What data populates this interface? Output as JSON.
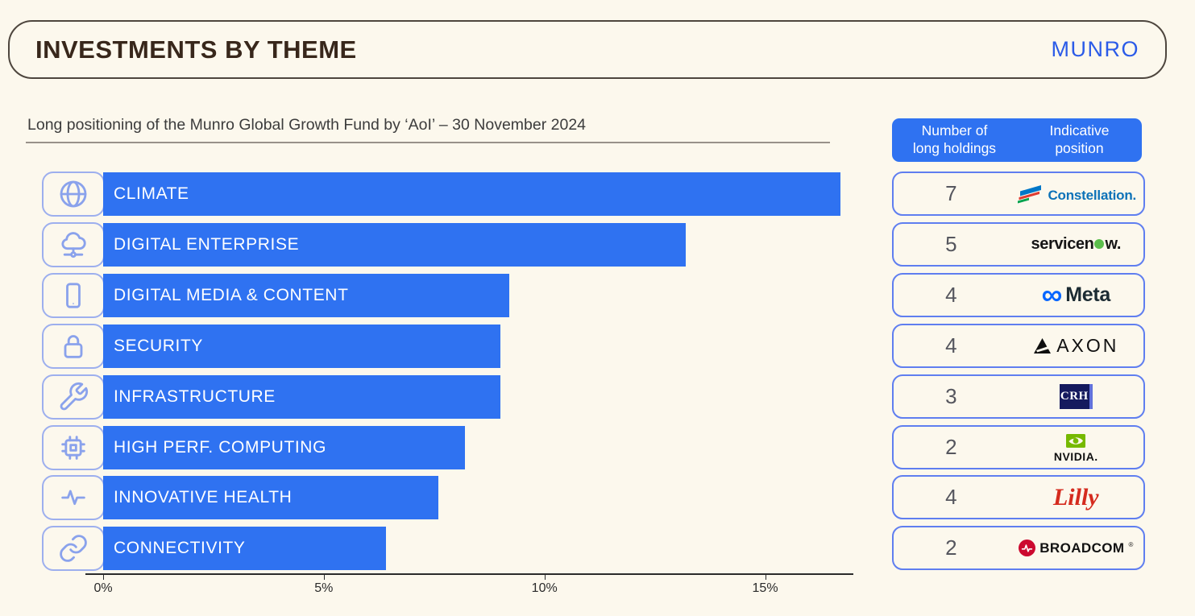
{
  "header": {
    "title": "INVESTMENTS BY THEME",
    "brand": "MUNRO"
  },
  "subtitle": "Long positioning of the Munro Global Growth Fund by ‘AoI’ – 30 November 2024",
  "chart_data": {
    "type": "bar",
    "orientation": "horizontal",
    "title": "Long positioning of the Munro Global Growth Fund by ‘AoI’ – 30 November 2024",
    "categories": [
      "CLIMATE",
      "DIGITAL ENTERPRISE",
      "DIGITAL MEDIA & CONTENT",
      "SECURITY",
      "INFRASTRUCTURE",
      "HIGH PERF. COMPUTING",
      "INNOVATIVE HEALTH",
      "CONNECTIVITY"
    ],
    "values": [
      16.7,
      13.2,
      9.2,
      9.0,
      9.0,
      8.2,
      7.6,
      6.4
    ],
    "unit": "%",
    "icons": [
      "globe-icon",
      "cloud-network-icon",
      "tablet-icon",
      "lock-icon",
      "wrench-icon",
      "chip-icon",
      "pulse-icon",
      "link-icon"
    ],
    "xlabel": "",
    "ylabel": "",
    "x_ticks": [
      "0%",
      "5%",
      "10%",
      "15%"
    ],
    "x_tick_values": [
      0,
      5,
      10,
      15
    ],
    "xlim": [
      0,
      17
    ],
    "bar_color": "#2F72F1",
    "grid": false,
    "legend": false
  },
  "holdings_panel": {
    "col1_header_line1": "Number of",
    "col1_header_line2": "long holdings",
    "col2_header_line1": "Indicative",
    "col2_header_line2": "position",
    "rows": [
      {
        "count": "7",
        "company": "Constellation"
      },
      {
        "count": "5",
        "company": "servicenow"
      },
      {
        "count": "4",
        "company": "Meta"
      },
      {
        "count": "4",
        "company": "AXON"
      },
      {
        "count": "3",
        "company": "CRH"
      },
      {
        "count": "2",
        "company": "NVIDIA"
      },
      {
        "count": "4",
        "company": "Lilly"
      },
      {
        "count": "2",
        "company": "Broadcom"
      }
    ]
  },
  "colors": {
    "background": "#FCF8ED",
    "bar_blue": "#2F72F1",
    "brand_blue": "#2B5BE8",
    "panel_border_blue": "#5F7EF0",
    "icon_box_border": "#9DAFEE",
    "icon_stroke": "#8AA2EC",
    "title_brown": "#38271B"
  }
}
